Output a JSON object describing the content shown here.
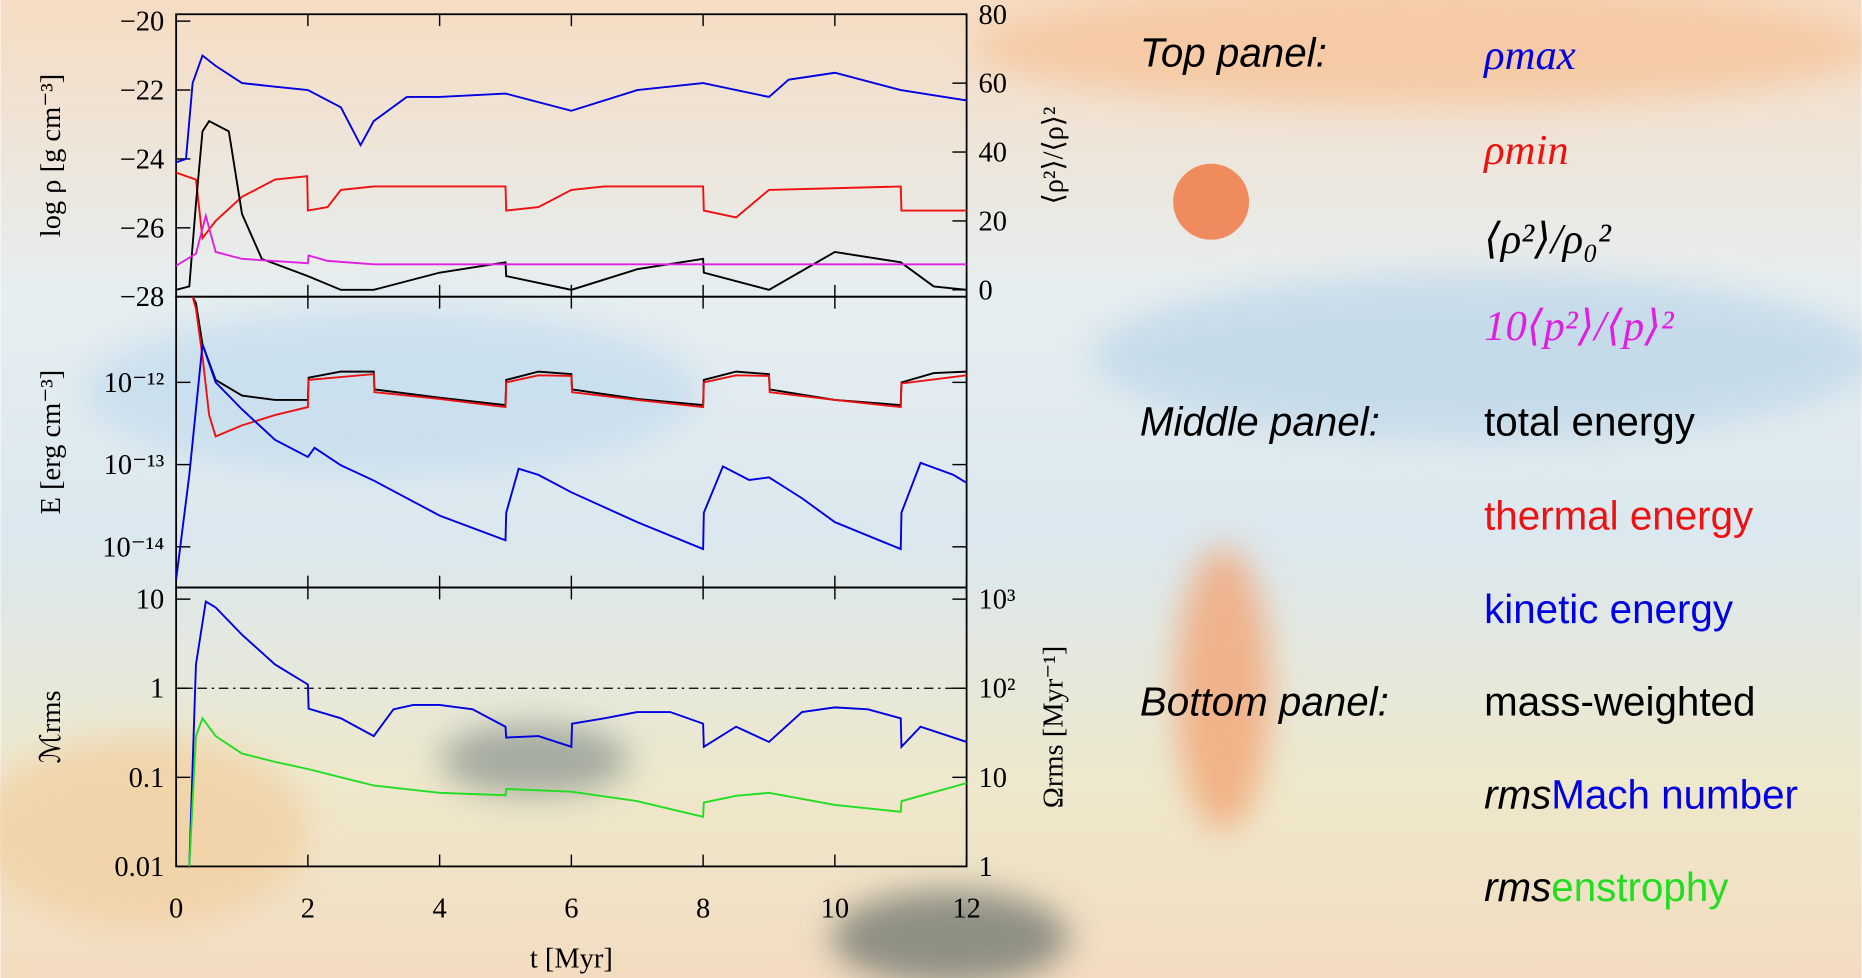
{
  "chart_data": [
    {
      "type": "line",
      "ylabel": "log ρ [g cm⁻³]",
      "y2label": "⟨ρ²⟩/⟨ρ⟩²",
      "legend_heading": "Top panel:",
      "xlim": [
        0,
        12
      ],
      "ylim": [
        -28,
        -19.8
      ],
      "yticks": [
        {
          "value": -20,
          "label": "−20"
        },
        {
          "value": -22,
          "label": "−22"
        },
        {
          "value": -24,
          "label": "−24"
        },
        {
          "value": -26,
          "label": "−26"
        },
        {
          "value": -28,
          "label": "−28"
        }
      ],
      "y2lim": [
        -2,
        80
      ],
      "y2ticks": [
        0,
        20,
        40,
        60,
        80
      ],
      "series": [
        {
          "name": "ρmax",
          "color": "#0000e0",
          "x": [
            0,
            0.15,
            0.25,
            0.4,
            0.6,
            1,
            1.5,
            2,
            2.5,
            2.8,
            3,
            3.5,
            4,
            5,
            6,
            7,
            8,
            9,
            9.3,
            10,
            11,
            12
          ],
          "values": [
            -24.1,
            -24.0,
            -21.8,
            -21.0,
            -21.3,
            -21.8,
            -21.9,
            -22.0,
            -22.5,
            -23.6,
            -22.9,
            -22.2,
            -22.2,
            -22.1,
            -22.6,
            -22.0,
            -21.8,
            -22.2,
            -21.7,
            -21.5,
            -22.0,
            -22.3
          ]
        },
        {
          "name": "ρmin",
          "color": "#ee1111",
          "x": [
            0,
            0.3,
            0.4,
            0.6,
            1,
            1.5,
            1.99,
            2,
            2.3,
            2.5,
            3,
            5,
            5.01,
            5.5,
            6,
            6.5,
            8,
            8.01,
            8.5,
            9,
            11,
            11.01,
            12
          ],
          "values": [
            -24.4,
            -24.6,
            -26.3,
            -25.8,
            -25.1,
            -24.6,
            -24.5,
            -25.5,
            -25.4,
            -24.9,
            -24.8,
            -24.8,
            -25.5,
            -25.4,
            -24.9,
            -24.8,
            -24.8,
            -25.5,
            -25.7,
            -24.9,
            -24.8,
            -25.5,
            -25.5
          ]
        },
        {
          "name": "⟨ρ²⟩/ρ₀²",
          "color": "#000000",
          "axis": "y2",
          "x": [
            0,
            0.2,
            0.3,
            0.4,
            0.5,
            0.8,
            1,
            1.3,
            2,
            2.5,
            3,
            4,
            5,
            5.01,
            6,
            7,
            8,
            8.01,
            9,
            10,
            11,
            11.5,
            12
          ],
          "values": [
            0,
            1,
            25,
            46,
            49,
            46,
            22,
            9,
            4,
            0,
            0,
            5,
            8,
            4,
            0,
            6,
            9,
            5,
            0,
            11,
            8,
            1,
            0
          ]
        },
        {
          "name": "10⟨p²⟩/⟨p⟩²",
          "color": "#e020e0",
          "axis": "y2",
          "x": [
            0,
            0.3,
            0.45,
            0.6,
            1,
            2,
            2.01,
            2.3,
            3,
            12
          ],
          "values": [
            7,
            10.5,
            21.5,
            11,
            9,
            7.7,
            10,
            8.4,
            7.4,
            7.4
          ]
        }
      ]
    },
    {
      "type": "line",
      "ylabel": "E [erg cm⁻³]",
      "legend_heading": "Middle panel:",
      "ylog": true,
      "xlim": [
        0,
        12
      ],
      "ylim": [
        3.2e-15,
        1.1e-11
      ],
      "yticks": [
        {
          "value": 1e-12,
          "label": "10⁻¹²"
        },
        {
          "value": 1e-13,
          "label": "10⁻¹³"
        },
        {
          "value": 1e-14,
          "label": "10⁻¹⁴"
        }
      ],
      "series": [
        {
          "name": "total energy",
          "color": "#000000",
          "x": [
            0.25,
            0.3,
            0.4,
            0.6,
            1,
            1.5,
            2,
            2.01,
            2.5,
            3,
            3.01,
            4,
            5,
            5.01,
            5.5,
            6,
            6.01,
            7,
            8,
            8.01,
            8.5,
            9,
            9.01,
            10,
            11,
            11.01,
            11.5,
            12
          ],
          "values": [
            1.1e-11,
            9.2e-12,
            2.9e-12,
            1.07e-12,
            6.9e-13,
            6.1e-13,
            6.1e-13,
            1.14e-12,
            1.35e-12,
            1.35e-12,
            8.2e-13,
            6.5e-13,
            5.3e-13,
            1.07e-12,
            1.35e-12,
            1.26e-12,
            8.2e-13,
            6.3e-13,
            5.3e-13,
            1.07e-12,
            1.35e-12,
            1.26e-12,
            8.2e-13,
            6.1e-13,
            5.3e-13,
            1e-12,
            1.3e-12,
            1.35e-12
          ]
        },
        {
          "name": "thermal energy",
          "color": "#ee1111",
          "x": [
            0.25,
            0.3,
            0.4,
            0.5,
            0.6,
            1,
            1.5,
            2,
            2.01,
            3,
            3.01,
            4,
            5,
            5.01,
            5.5,
            6,
            6.01,
            7,
            8,
            8.01,
            8.5,
            9,
            9.01,
            10,
            11,
            11.01,
            12
          ],
          "values": [
            1.1e-11,
            7.8e-12,
            2.07e-12,
            4e-13,
            2.2e-13,
            3e-13,
            4e-13,
            5e-13,
            1.07e-12,
            1.26e-12,
            7.6e-13,
            6.3e-13,
            5e-13,
            1e-12,
            1.22e-12,
            1.2e-12,
            7.6e-13,
            6.1e-13,
            5e-13,
            1e-12,
            1.22e-12,
            1.2e-12,
            7.6e-13,
            6.1e-13,
            5e-13,
            9.7e-13,
            1.22e-12
          ]
        },
        {
          "name": "kinetic energy",
          "color": "#0000e0",
          "x": [
            0,
            0.2,
            0.4,
            0.6,
            1,
            1.5,
            2,
            2.1,
            2.5,
            3,
            4,
            5,
            5.01,
            5.2,
            5.5,
            6,
            7,
            8,
            8.01,
            8.3,
            8.7,
            9,
            9.5,
            10,
            11,
            11.01,
            11.3,
            11.8,
            12
          ],
          "values": [
            4e-15,
            7.5e-14,
            2.9e-12,
            1e-12,
            4.7e-13,
            2e-13,
            1.24e-13,
            1.6e-13,
            9.8e-14,
            6.4e-14,
            2.4e-14,
            1.2e-14,
            2.6e-14,
            8.9e-14,
            7.5e-14,
            4.6e-14,
            2e-14,
            9.4e-15,
            2.6e-14,
            9.5e-14,
            6.5e-14,
            7e-14,
            3.9e-14,
            2e-14,
            9.4e-15,
            2.6e-14,
            1.05e-13,
            7.5e-14,
            6e-14
          ]
        }
      ]
    },
    {
      "type": "line",
      "ylabel": "ℳrms",
      "y2label": "Ωrms [Myr⁻¹]",
      "xlabel": "t [Myr]",
      "legend_heading": "Bottom panel:",
      "legend_note": "mass-weighted",
      "legend_prefix": "rms",
      "ylog": true,
      "xlim": [
        0,
        12
      ],
      "xticks": [
        0,
        2,
        4,
        6,
        8,
        10,
        12
      ],
      "ylim": [
        0.01,
        13.5
      ],
      "yticks": [
        10,
        1,
        0.1,
        0.01
      ],
      "y2lim": [
        1,
        1350
      ],
      "y2ticks": [
        {
          "value": 1000,
          "label": "10³"
        },
        {
          "value": 100,
          "label": "10²"
        },
        10,
        1
      ],
      "reference_line": 1,
      "series": [
        {
          "name": "Mach number",
          "color": "#0000e0",
          "x": [
            0.2,
            0.3,
            0.45,
            0.6,
            1,
            1.5,
            2,
            2.01,
            2.5,
            3,
            3.3,
            3.6,
            4,
            4.5,
            5,
            5.01,
            5.5,
            6,
            6.01,
            6.5,
            7,
            7.5,
            8,
            8.01,
            8.5,
            9,
            9.5,
            10,
            10.5,
            11,
            11.01,
            11.3,
            11.8,
            12
          ],
          "values": [
            0.01,
            1.85,
            9.4,
            8.07,
            3.98,
            1.85,
            1.1,
            0.59,
            0.46,
            0.29,
            0.58,
            0.65,
            0.65,
            0.58,
            0.37,
            0.28,
            0.29,
            0.22,
            0.4,
            0.46,
            0.54,
            0.54,
            0.4,
            0.22,
            0.37,
            0.25,
            0.54,
            0.61,
            0.58,
            0.46,
            0.22,
            0.37,
            0.28,
            0.25
          ]
        },
        {
          "name": "enstrophy",
          "color": "#22dd22",
          "axis": "y2",
          "x": [
            0.2,
            0.3,
            0.4,
            0.6,
            1,
            1.5,
            2,
            2.5,
            3,
            4,
            5,
            5.01,
            6,
            7,
            8,
            8.01,
            8.5,
            9,
            10,
            11,
            11.01,
            12
          ],
          "values": [
            1,
            29,
            46,
            29,
            18.5,
            14.9,
            12.4,
            10,
            8.1,
            6.7,
            6.3,
            7.4,
            6.9,
            5.4,
            3.6,
            5.2,
            6.2,
            6.7,
            4.9,
            4.1,
            5.4,
            8.6
          ]
        }
      ]
    }
  ]
}
